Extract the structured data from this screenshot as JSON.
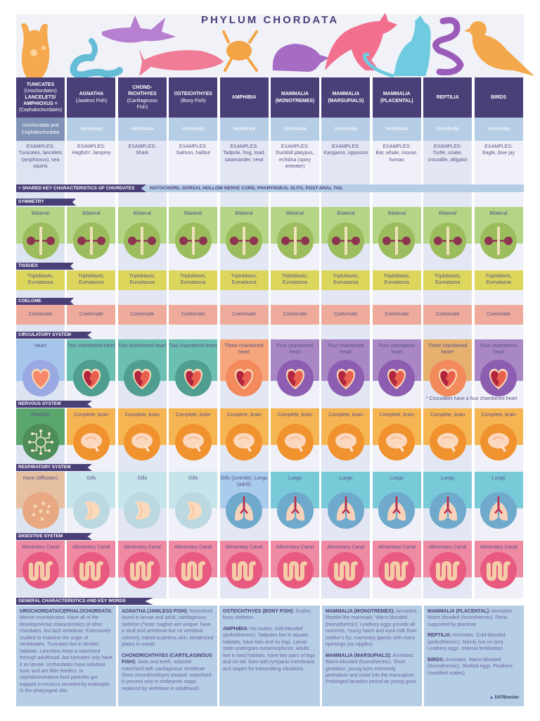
{
  "title": "PHYLUM CHORDATA",
  "columns": [
    {
      "name_lines": [
        "TUNICATES",
        "(Urochordates)",
        "LANCELETS/",
        "AMPHIOXUS =",
        "(Cephalochordates)"
      ],
      "bold": [
        true,
        false,
        true,
        true,
        false
      ],
      "classification": "Urochordata and Cephalochordata",
      "examples": "Tunicates, lancelets (amphioxus), sea squirts"
    },
    {
      "name_lines": [
        "AGNATHA",
        "(Jawless Fish)"
      ],
      "bold": [
        true,
        false
      ],
      "classification": "Vertebrata",
      "examples": "Hagfish*, lamprey"
    },
    {
      "name_lines": [
        "CHOND-",
        "RICHTHYES",
        "(Cartilaginous",
        "Fish)"
      ],
      "bold": [
        true,
        true,
        false,
        false
      ],
      "classification": "Vertebrata",
      "examples": "Shark"
    },
    {
      "name_lines": [
        "OSTEICHTHYES",
        "(Bony Fish)"
      ],
      "bold": [
        true,
        false
      ],
      "classification": "Vertebrata",
      "examples": "Salmon, halibut"
    },
    {
      "name_lines": [
        "AMPHIBIA"
      ],
      "bold": [
        true
      ],
      "classification": "Vertebrata",
      "examples": "Tadpole, frog, toad, salamander, newt"
    },
    {
      "name_lines": [
        "MAMMALIA",
        "(MONOTREMES)"
      ],
      "bold": [
        true,
        true
      ],
      "classification": "Vertebrata",
      "examples": "Duckbill platypus, echidna (spiny anteater)"
    },
    {
      "name_lines": [
        "MAMMALIA",
        "(MARSUPIALS)"
      ],
      "bold": [
        true,
        true
      ],
      "classification": "Vertebrata",
      "examples": "Kangaroo, opposum"
    },
    {
      "name_lines": [
        "MAMMALIA",
        "(PLACENTAL)"
      ],
      "bold": [
        true,
        true
      ],
      "classification": "Vertebrata",
      "examples": "Bat, whale, mouse, human"
    },
    {
      "name_lines": [
        "REPTILIA"
      ],
      "bold": [
        true
      ],
      "classification": "Vertebrata",
      "examples": "Turtle, snake, crocodile, alligator"
    },
    {
      "name_lines": [
        "BIRDS"
      ],
      "bold": [
        true
      ],
      "classification": "Vertebrata",
      "examples": "Eagle, blue jay"
    }
  ],
  "examples_label": "EXAMPLES:",
  "shared": {
    "label": "+ SHARED KEY CHARACTERISTICS OF CHORDATES",
    "value": "NOTOCHORD, DORSAL HOLLOW NERVE CORD, PHARYNGEAL SLITS, POST-ANAL TAIL"
  },
  "rows": [
    {
      "label": "SYMMETRY",
      "icon": "symmetry-icon",
      "values": [
        "Bilateral",
        "Bilateral",
        "Bilateral",
        "Bilateral",
        "Bilateral",
        "Bilateral",
        "Bilateral",
        "Bilateral",
        "Bilateral",
        "Bilateral"
      ],
      "band_colors": [
        "#b4d486"
      ],
      "circle_colors": [
        "#9cbd5d"
      ]
    },
    {
      "label": "TISSUES",
      "values": [
        "Triploblasts, Eumatazoa",
        "Triploblasts, Eumatazoa",
        "Triploblasts, Eumatazoa",
        "Triploblasts, Eumatazoa",
        "Triploblasts, Eumatazoa",
        "Triploblasts, Eumatazoa",
        "Triploblasts, Eumatazoa",
        "Triploblasts, Eumatazoa",
        "Triploblasts, Eumatazoa",
        "Triploblasts, Eumatazoa"
      ],
      "band_colors": [
        "#dcd75c"
      ]
    },
    {
      "label": "COELOME",
      "values": [
        "Coelomate",
        "Coelomate",
        "Coelomate",
        "Coelomate",
        "Coelomate",
        "Coelomate",
        "Coelomate",
        "Coelomate",
        "Coelomate",
        "Coelomate"
      ],
      "band_colors": [
        "#eeab9b"
      ]
    },
    {
      "label": "CIRCULATORY SYSTEM",
      "icon": "heart-icon",
      "values": [
        "Heart",
        "Two chambered heart",
        "Two chambered heart",
        "Two chambered heart",
        "Three chambered heart",
        "Four chambered heart",
        "Four chambered heart",
        "Four chambered heart",
        "Three chambered heart*",
        "Four chambered heart"
      ],
      "band_colors": [
        "#a5c5eb",
        "#6cc0b1",
        "#6cc0b1",
        "#6cc0b1",
        "#f6a67c",
        "#a887c4",
        "#a887c4",
        "#a887c4",
        "#e6b06f",
        "#a887c4"
      ],
      "circle_colors": [
        "#9ba9e2",
        "#4f9e90",
        "#4f9e90",
        "#4f9e90",
        "#f28a5c",
        "#8c5db0",
        "#8c5db0",
        "#8c5db0",
        "#f28a5c",
        "#8c5db0"
      ],
      "note": "* Crocodiles have a four chambered heart"
    },
    {
      "label": "NERVOUS SYSTEM",
      "icon": "brain-icon",
      "values": [
        "Primitive",
        "Complete, brain",
        "Complete, brain",
        "Complete, brain",
        "Complete, brain",
        "Complete, brain",
        "Complete, brain",
        "Complete, brain",
        "Complete, brain",
        "Complete, brain"
      ],
      "band_colors": [
        "#5aa66c",
        "#f6b553",
        "#f6b553",
        "#f6b553",
        "#f6b553",
        "#f6b553",
        "#f6b553",
        "#f6b553",
        "#f6b553",
        "#f6b553"
      ],
      "circle_colors": [
        "#4e8c5a",
        "#f0922e",
        "#f0922e",
        "#f0922e",
        "#f0922e",
        "#f0922e",
        "#f0922e",
        "#f0922e",
        "#f0922e",
        "#f0922e"
      ]
    },
    {
      "label": "RESPIRATORY SYSTEM",
      "icon": "lungs-icon",
      "values": [
        "None (diffusion)",
        "Gills",
        "Gills",
        "Gills",
        "Gills (juvenile), Lungs (adult)",
        "Lungs",
        "Lungs",
        "Lungs",
        "Lungs",
        "Lungs"
      ],
      "band_colors": [
        "#e5c0a1",
        "#c6e5eb",
        "#c6e5eb",
        "#c6e5eb",
        "#a9cbec",
        "#78cad9",
        "#78cad9",
        "#78cad9",
        "#78cad9",
        "#78cad9"
      ],
      "circle_colors": [
        "#e8a882",
        "#bcd9e2",
        "#bcd9e2",
        "#bcd9e2",
        "#6fa9cc",
        "#6fa9cc",
        "#6fa9cc",
        "#6fa9cc",
        "#6fa9cc",
        "#6fa9cc"
      ]
    },
    {
      "label": "DIGESTIVE SYSTEM",
      "icon": "intestine-icon",
      "values": [
        "Alimentary Canal",
        "Alimentary Canal",
        "Alimentary Canal",
        "Alimentary Canal",
        "Alimentary Canal",
        "Alimentary Canal",
        "Alimentary Canal",
        "Alimentary Canal",
        "Alimentary Canal",
        "Alimentary Canal"
      ],
      "band_colors": [
        "#ef8aa3"
      ],
      "circle_colors": [
        "#e85a80"
      ]
    }
  ],
  "general": {
    "label": "GENERAL CHARACTERISTICS AND KEY WORDS",
    "boxes": [
      [
        {
          "head": "UROCHORDATA/CEPHALOCHORDATA:",
          "text": " Marine invertebrates. Have all of the developmental characteristics of other chordates, but lack vertebrae. Extensively studied to examine the origin of vertebrates. Tunicates live in benthic habitats. Lancelets keep a notochord through adulthood, but tunicates only have it as larvae. Urchordates have cellulose tunic and are filter feeders. In cephalochordates food particles get trapped in muscus secreted by endostyle in the pharyngeal slits"
        }
      ],
      [
        {
          "head": "AGNATHA (JAWLESS FISH):",
          "text": " Notochord found in larvae and adult, cartilaginous skeleton [*note: hagfish are unique: have a skull and vertebrae but no vertebral column], naked scaleless skin, keratinized plates in mouth"
        },
        {
          "head": "CHONDRICHTHYES (CARTILAGINOUS FISH):",
          "text": " Jaws and teeth, reduced notochord with cartilaginous vertebrae (from chrondrichthyes onward: notochord is present only in embryonic stage, replaced by vertebrae in adulthood)"
        }
      ],
      [
        {
          "head": "OSTEICHTHYES (BONY FISH):",
          "text": " Scales, bony skeleton"
        },
        {
          "head": "AMPHIBIA:",
          "text": " No scales, cold-blooded (poikolthermic). Tadpoles live in aquatic habitats, have tails and no legs. Larval state undergoes metamorphosis. Adults live in land habitats, have two pairs of legs and no tail. Ears with tympanic membrane and stapes for transmitting vibrations"
        }
      ],
      [
        {
          "head": "MAMMALIA (MONOTREMES):",
          "text": " Amniotes. Reptile-like mammals. Warm blooded (homothermic). Leathery eggs provide all nutrients. Young hatch and suck milk from mother's fur, mammary glands with many openings (no nipples)"
        },
        {
          "head": "MAMMALIA (MARSUPIALS):",
          "text": " Amniotes. Warm-blooded (homothermic). Short gestation, young born extremely premature and crawl into the marsupium. Prolonged lactation period as young grow"
        }
      ],
      [
        {
          "head": "MAMMALIA (PLACENTAL):",
          "text": " Amniotes. Warm blooded (homothermic). Fetus supported by placenta"
        },
        {
          "head": "REPTILIA:",
          "text": " Amniotes. Cold-blooded (poikolthermic). Mainly live on land. Leathery eggs. Internal fertilization"
        },
        {
          "head": "BIRDS:",
          "text": " Amniotes. Warm-blooded (homothermic). Shelled eggs. Feathers (modified scales)"
        }
      ]
    ]
  },
  "logo": "DATBooster",
  "animals": [
    {
      "name": "tunicate",
      "color": "#f6a94f"
    },
    {
      "name": "lamprey",
      "color": "#64bcd6"
    },
    {
      "name": "shark",
      "color": "#b77fd0"
    },
    {
      "name": "salmon",
      "color": "#f07c98"
    },
    {
      "name": "frog",
      "color": "#f3a445"
    },
    {
      "name": "echidna",
      "color": "#a66cc4"
    },
    {
      "name": "kangaroo",
      "color": "#f26f8e"
    },
    {
      "name": "cat",
      "color": "#6fcbe0"
    },
    {
      "name": "snake",
      "color": "#9a5cb8"
    },
    {
      "name": "bird",
      "color": "#f4a84c"
    }
  ]
}
